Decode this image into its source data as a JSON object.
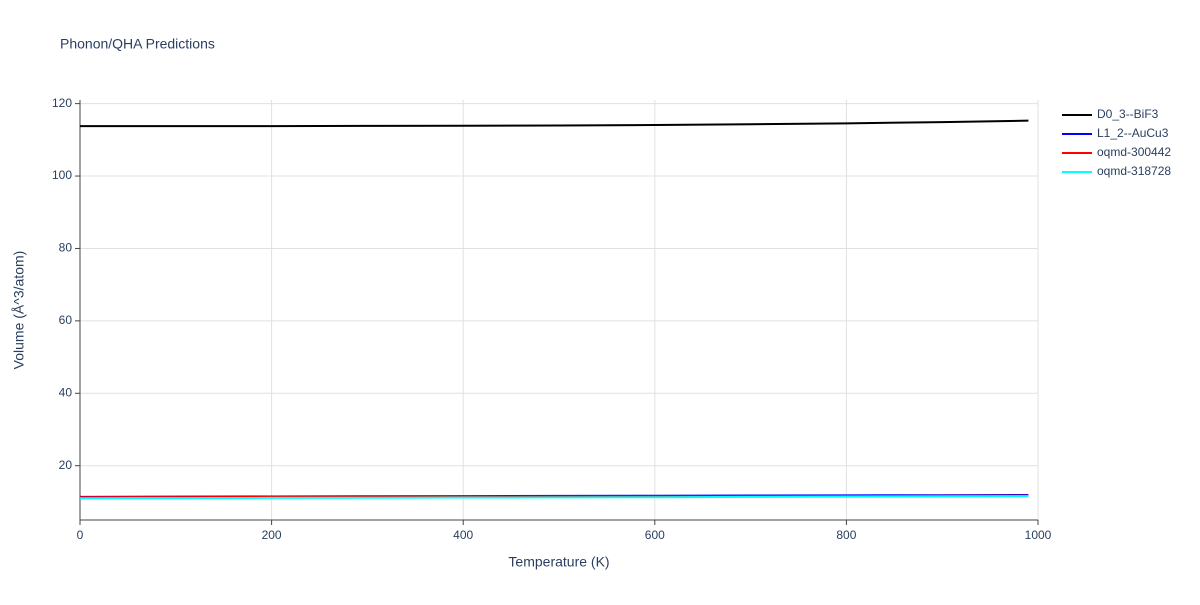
{
  "chart_data": {
    "type": "line",
    "title": "Phonon/QHA Predictions",
    "x_label": "Temperature (K)",
    "y_label": "Volume (Å^3/atom)",
    "x": [
      0,
      100,
      200,
      300,
      400,
      500,
      600,
      700,
      800,
      900,
      990
    ],
    "series": [
      {
        "name": "D0_3--BiF3",
        "color": "#000000",
        "values": [
          113.8,
          113.8,
          113.8,
          113.85,
          113.9,
          113.95,
          114.1,
          114.3,
          114.55,
          114.9,
          115.3
        ]
      },
      {
        "name": "L1_2--AuCu3",
        "color": "#0000ff",
        "values": [
          11.4,
          11.45,
          11.5,
          11.55,
          11.6,
          11.65,
          11.7,
          11.75,
          11.8,
          11.85,
          11.9
        ]
      },
      {
        "name": "oqmd-300442",
        "color": "#ff0000",
        "values": [
          11.3,
          11.33,
          11.37,
          11.41,
          11.45,
          11.49,
          11.53,
          11.57,
          11.61,
          11.65,
          11.7
        ]
      },
      {
        "name": "oqmd-318728",
        "color": "#00ffff",
        "values": [
          11.0,
          11.05,
          11.1,
          11.15,
          11.2,
          11.25,
          11.3,
          11.37,
          11.44,
          11.52,
          11.6
        ]
      }
    ],
    "xlim": [
      0,
      1000
    ],
    "xticks": [
      0,
      200,
      400,
      600,
      800,
      1000
    ],
    "ylim": [
      5,
      121
    ],
    "yticks": [
      20,
      40,
      60,
      80,
      100,
      120
    ],
    "grid": true,
    "legend": "right"
  }
}
